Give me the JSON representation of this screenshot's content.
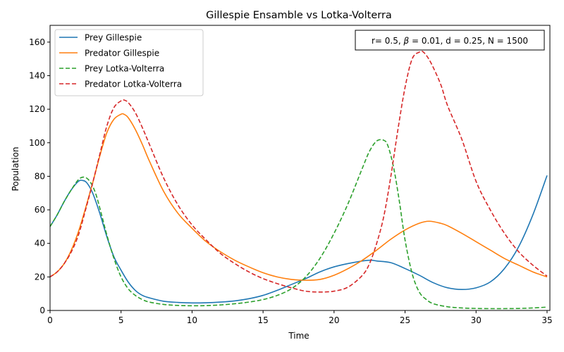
{
  "chart_data": {
    "type": "line",
    "title": "Gillespie Ensamble vs Lotka-Volterra",
    "xlabel": "Time",
    "ylabel": "Population",
    "xlim": [
      0,
      35.2
    ],
    "ylim": [
      0,
      170
    ],
    "xticks": [
      0,
      5,
      10,
      15,
      20,
      25,
      30,
      35
    ],
    "yticks": [
      0,
      20,
      40,
      60,
      80,
      100,
      120,
      140,
      160
    ],
    "grid": false,
    "legend_placement": "upper-left",
    "annotation": {
      "parts": [
        "r= 0.5, ",
        "β",
        " = 0.01, d = 0.25, N = 1500"
      ],
      "placement": "upper-right"
    },
    "series": [
      {
        "name": "Prey Gillespie",
        "color": "#1f77b4",
        "style": "solid",
        "x": [
          0,
          0.5,
          1,
          1.5,
          2,
          2.3,
          2.6,
          3,
          3.5,
          4,
          4.5,
          5,
          5.5,
          6,
          6.5,
          7,
          8,
          9,
          10,
          11,
          12,
          13,
          14,
          15,
          16,
          17,
          18,
          19,
          20,
          21,
          22,
          22.6,
          23,
          24,
          25,
          26,
          27,
          28,
          29,
          30,
          31,
          32,
          33,
          34,
          35
        ],
        "y": [
          50,
          57,
          65,
          72,
          77,
          77.5,
          76,
          70,
          58,
          44,
          32,
          24,
          17,
          12,
          9,
          7.5,
          5.5,
          4.8,
          4.5,
          4.6,
          5,
          5.7,
          7,
          9,
          12,
          15.5,
          19,
          23,
          26,
          28,
          29.5,
          30,
          29.5,
          28.5,
          25,
          21,
          16.5,
          13.5,
          12.5,
          13.5,
          17,
          25,
          38,
          57,
          80.5
        ]
      },
      {
        "name": "Predator Gillespie",
        "color": "#ff7f0e",
        "style": "solid",
        "x": [
          0,
          0.5,
          1,
          1.5,
          2,
          2.5,
          3,
          3.5,
          4,
          4.5,
          5,
          5.2,
          5.5,
          6,
          6.5,
          7,
          8,
          9,
          10,
          11,
          12,
          13,
          14,
          15,
          16,
          17,
          18,
          19,
          20,
          21,
          22,
          23,
          24,
          25,
          26,
          26.7,
          27.5,
          28,
          29,
          30,
          31,
          32,
          33,
          34,
          35
        ],
        "y": [
          20,
          23,
          28,
          36,
          47,
          61,
          76,
          92,
          106,
          114,
          117,
          117,
          115,
          108,
          99,
          89,
          71,
          58,
          49,
          41,
          35,
          30,
          26,
          22.5,
          20,
          18.5,
          18,
          18.5,
          21,
          25,
          30,
          36,
          42.5,
          48,
          52,
          53.2,
          52,
          50.5,
          46,
          41,
          36,
          31,
          27,
          23,
          20
        ]
      },
      {
        "name": "Prey Lotka-Volterra",
        "color": "#2ca02c",
        "style": "dashed",
        "x": [
          0,
          0.5,
          1,
          1.5,
          2,
          2.4,
          2.8,
          3.2,
          3.6,
          4,
          4.5,
          5,
          5.5,
          6,
          6.5,
          7,
          8,
          9,
          10,
          11,
          12,
          13,
          14,
          15,
          16,
          17,
          18,
          19,
          20,
          21,
          22,
          22.5,
          23,
          23.5,
          23.8,
          24.2,
          24.6,
          25,
          25.5,
          26,
          26.5,
          27,
          28,
          29,
          30,
          31,
          32,
          33,
          34,
          35
        ],
        "y": [
          50,
          57,
          65,
          72,
          78,
          79.5,
          77,
          70,
          58,
          45,
          31,
          20,
          13,
          9,
          6.5,
          5,
          3.6,
          3,
          2.8,
          2.9,
          3.3,
          4,
          5,
          6.5,
          9,
          13,
          20,
          31,
          46,
          64,
          85,
          95,
          101,
          101.5,
          98,
          85,
          65,
          42,
          22,
          11,
          6.5,
          4,
          2.2,
          1.5,
          1.2,
          1.1,
          1.1,
          1.2,
          1.5,
          2
        ]
      },
      {
        "name": "Predator Lotka-Volterra",
        "color": "#d62728",
        "style": "dashed",
        "x": [
          0,
          0.5,
          1,
          1.5,
          2,
          2.5,
          3,
          3.5,
          4,
          4.5,
          5,
          5.2,
          5.5,
          6,
          6.5,
          7,
          8,
          9,
          10,
          11,
          12,
          13,
          14,
          15,
          16,
          17,
          18,
          19,
          20,
          21,
          22,
          22.5,
          23,
          23.5,
          24,
          24.5,
          25,
          25.5,
          26,
          26.3,
          26.8,
          27.5,
          28,
          29,
          30,
          31,
          32,
          33,
          34,
          35
        ],
        "y": [
          20,
          23,
          28,
          35,
          45,
          60,
          76,
          93,
          110,
          121,
          125,
          125.5,
          124,
          118,
          109,
          99,
          79,
          63,
          51,
          42,
          34,
          28,
          23,
          19,
          16,
          13.5,
          11.5,
          11,
          11.5,
          14,
          21,
          28,
          40,
          56,
          80,
          108,
          133,
          150,
          154,
          154,
          148,
          135,
          122,
          102,
          77,
          60,
          46,
          35,
          27,
          20.5
        ]
      }
    ]
  }
}
